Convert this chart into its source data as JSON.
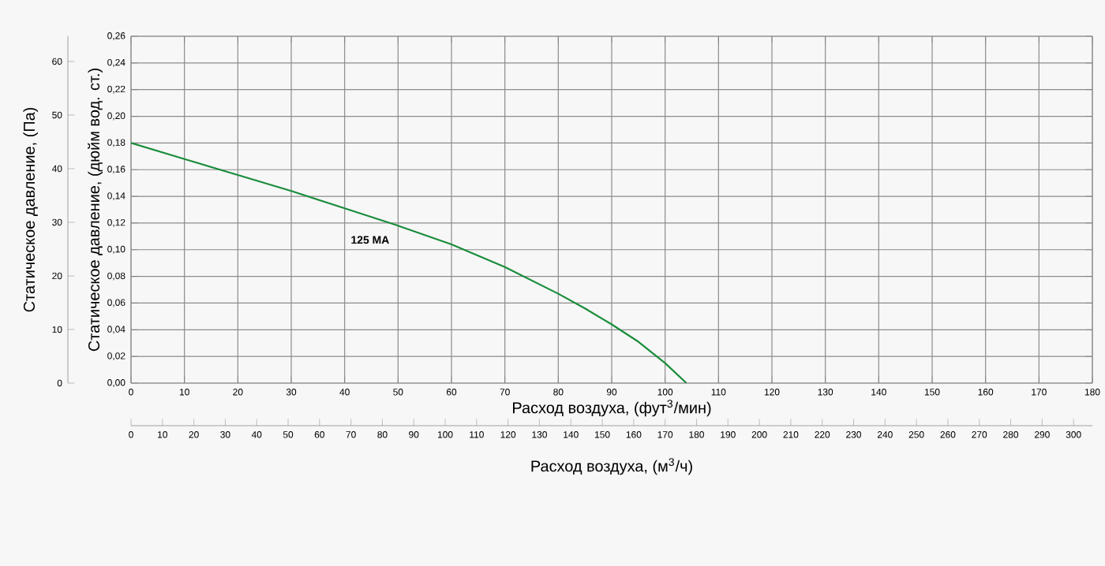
{
  "chart_data": {
    "type": "line",
    "xlabel": "Расход воздуха, (фут$^{3}$/мин)",
    "ylabel": "Статическое давление, (дюйм вод. ст.)",
    "y2label": "Статическое давление, (Па)",
    "x2label": "Расход воздуха, (м$^{3}$/ч)",
    "x": [
      0,
      10,
      20,
      30,
      40,
      50,
      60,
      70,
      80,
      85,
      90,
      95,
      100,
      104
    ],
    "series": [
      {
        "name": "125 MA",
        "color": "#1a8c3a",
        "values": [
          0.18,
          0.168,
          0.156,
          0.144,
          0.131,
          0.118,
          0.104,
          0.087,
          0.067,
          0.056,
          0.044,
          0.031,
          0.015,
          0.0
        ]
      }
    ],
    "xlim": [
      0,
      180
    ],
    "xticks": [
      0,
      10,
      20,
      30,
      40,
      50,
      60,
      70,
      80,
      90,
      100,
      110,
      120,
      130,
      140,
      150,
      160,
      170,
      180
    ],
    "ylim": [
      0,
      0.26
    ],
    "yticks": [
      {
        "value": 0.0,
        "label": "0,00"
      },
      {
        "value": 0.02,
        "label": "0,02"
      },
      {
        "value": 0.04,
        "label": "0,04"
      },
      {
        "value": 0.06,
        "label": "0,06"
      },
      {
        "value": 0.08,
        "label": "0,08"
      },
      {
        "value": 0.1,
        "label": "0,10"
      },
      {
        "value": 0.12,
        "label": "0,12"
      },
      {
        "value": 0.14,
        "label": "0,14"
      },
      {
        "value": 0.16,
        "label": "0,16"
      },
      {
        "value": 0.18,
        "label": "0,18"
      },
      {
        "value": 0.2,
        "label": "0,20"
      },
      {
        "value": 0.22,
        "label": "0,22"
      },
      {
        "value": 0.24,
        "label": "0,24"
      },
      {
        "value": 0.26,
        "label": "0,26"
      }
    ],
    "y2lim": [
      0,
      64.7
    ],
    "y2ticks": [
      0,
      10,
      20,
      30,
      40,
      50,
      60
    ],
    "x2lim": [
      0,
      306
    ],
    "x2ticks": [
      0,
      10,
      20,
      30,
      40,
      50,
      60,
      70,
      80,
      90,
      100,
      110,
      120,
      130,
      140,
      150,
      160,
      170,
      180,
      190,
      200,
      210,
      220,
      230,
      240,
      250,
      260,
      270,
      280,
      290,
      300
    ],
    "grid": true,
    "line_style": "solid"
  }
}
